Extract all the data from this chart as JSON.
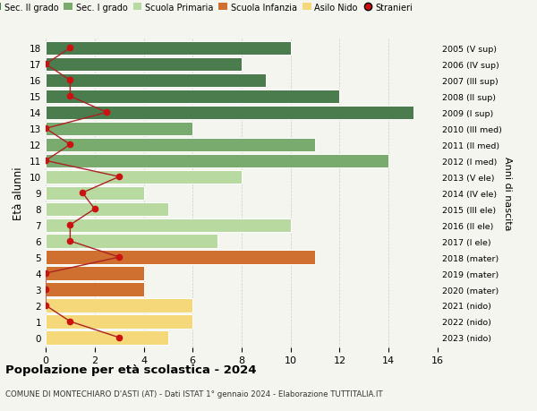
{
  "ages": [
    18,
    17,
    16,
    15,
    14,
    13,
    12,
    11,
    10,
    9,
    8,
    7,
    6,
    5,
    4,
    3,
    2,
    1,
    0
  ],
  "right_labels": [
    "2005 (V sup)",
    "2006 (IV sup)",
    "2007 (III sup)",
    "2008 (II sup)",
    "2009 (I sup)",
    "2010 (III med)",
    "2011 (II med)",
    "2012 (I med)",
    "2013 (V ele)",
    "2014 (IV ele)",
    "2015 (III ele)",
    "2016 (II ele)",
    "2017 (I ele)",
    "2018 (mater)",
    "2019 (mater)",
    "2020 (mater)",
    "2021 (nido)",
    "2022 (nido)",
    "2023 (nido)"
  ],
  "bar_values": [
    10,
    8,
    9,
    12,
    15,
    6,
    11,
    14,
    8,
    4,
    5,
    10,
    7,
    11,
    4,
    4,
    6,
    6,
    5
  ],
  "bar_colors": [
    "#4a7c4e",
    "#4a7c4e",
    "#4a7c4e",
    "#4a7c4e",
    "#4a7c4e",
    "#7aab6e",
    "#7aab6e",
    "#7aab6e",
    "#b8d9a0",
    "#b8d9a0",
    "#b8d9a0",
    "#b8d9a0",
    "#b8d9a0",
    "#d07030",
    "#d07030",
    "#d07030",
    "#f5d87a",
    "#f5d87a",
    "#f5d87a"
  ],
  "stranieri_values": [
    1,
    0,
    1,
    1,
    2.5,
    0,
    1,
    0,
    3,
    1.5,
    2,
    1,
    1,
    3,
    0,
    0,
    0,
    1,
    3
  ],
  "title": "Popolazione per età scolastica - 2024",
  "subtitle": "COMUNE DI MONTECHIARO D'ASTI (AT) - Dati ISTAT 1° gennaio 2024 - Elaborazione TUTTITALIA.IT",
  "ylabel": "Età alunni",
  "right_ylabel": "Anni di nascita",
  "xlim": [
    0,
    16
  ],
  "bg_color": "#f5f5f0",
  "legend_labels": [
    "Sec. II grado",
    "Sec. I grado",
    "Scuola Primaria",
    "Scuola Infanzia",
    "Asilo Nido",
    "Stranieri"
  ],
  "legend_colors": [
    "#4a7c4e",
    "#7aab6e",
    "#b8d9a0",
    "#d07030",
    "#f5d87a",
    "#cc1111"
  ],
  "grid_color": "#bbbbbb",
  "stranieri_color": "#cc1111",
  "stranieri_line_color": "#aa2222"
}
